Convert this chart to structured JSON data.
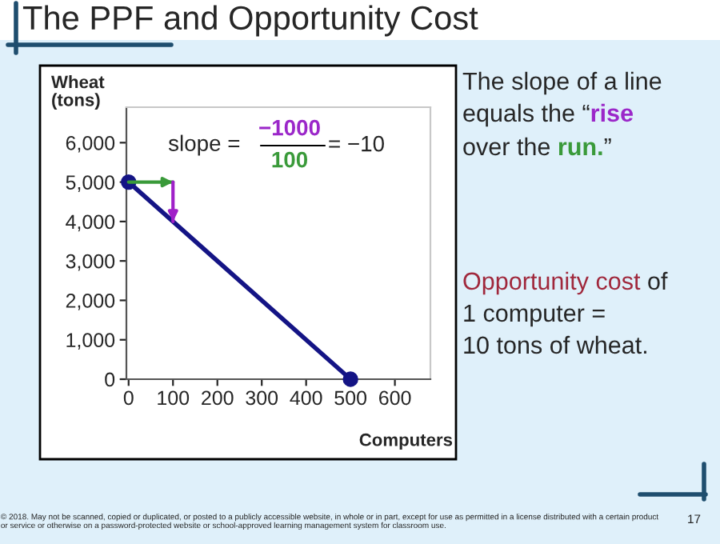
{
  "chart_data": {
    "type": "line",
    "title": "The PPF and Opportunity Cost",
    "xlabel": "Computers",
    "ylabel": "Wheat\n(tons)",
    "xlim": [
      -5,
      680
    ],
    "ylim": [
      0,
      6900
    ],
    "xticks": [
      0,
      100,
      200,
      300,
      400,
      500,
      600
    ],
    "yticks": [
      {
        "value": 0,
        "label": "0"
      },
      {
        "value": 1000,
        "label": "1,000"
      },
      {
        "value": 2000,
        "label": "2,000"
      },
      {
        "value": 3000,
        "label": "3,000"
      },
      {
        "value": 4000,
        "label": "4,000"
      },
      {
        "value": 5000,
        "label": "5,000"
      },
      {
        "value": 6000,
        "label": "6,000"
      }
    ],
    "grid": false,
    "legend": false,
    "series": [
      {
        "type": "line",
        "color": "#141485",
        "x": [
          0,
          500
        ],
        "values": [
          5000,
          0
        ],
        "marker": "circle"
      },
      {
        "type": "line",
        "color": "#3a9a3a",
        "x": [
          0,
          100
        ],
        "values": [
          5000,
          5000
        ],
        "marker": "none"
      },
      {
        "type": "line",
        "color": "#a020c8",
        "x": [
          100,
          100
        ],
        "values": [
          5000,
          4000
        ],
        "marker": "none"
      }
    ],
    "annotations": [
      {
        "text": "slope =",
        "x": 100,
        "y": 5000
      },
      "−1000",
      "100",
      "= −10",
      "The slope of a line",
      "equals the “",
      "rise",
      "over the ",
      "run.",
      "”",
      "Opportunity cost",
      " of",
      "1 computer =",
      "10 tons of wheat.",
      "© 2018. May not be scanned, copied or duplicated, or posted to a publicly accessible website, in whole or in part, except for use as permitted in a license distributed with a certain product or service or otherwise on a password-protected website or school-approved learning management system for classroom use.",
      "17"
    ]
  }
}
